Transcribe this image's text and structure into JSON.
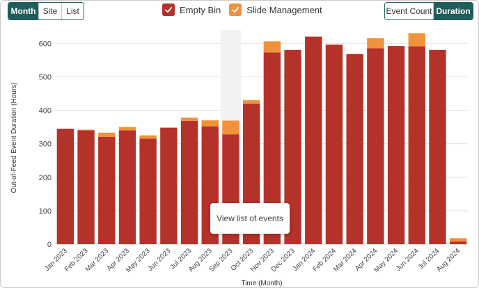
{
  "view_toggle": {
    "items": [
      "Month",
      "Site",
      "List"
    ],
    "active": 0
  },
  "metric_toggle": {
    "items": [
      "Event Count",
      "Duration"
    ],
    "active": 1
  },
  "colors": {
    "empty_bin": "#b5322a",
    "slide_management": "#f0923a",
    "accent": "#1f5f5b",
    "hover_band": "#f2f2f2"
  },
  "tooltip": {
    "text": "View list of events"
  },
  "chart_data": {
    "type": "bar",
    "stacked": true,
    "categories": [
      "Jan 2023",
      "Feb 2023",
      "Mar 2023",
      "Apr 2023",
      "May 2023",
      "Jun 2023",
      "Jul 2023",
      "Aug 2023",
      "Sep 2023",
      "Oct 2023",
      "Nov 2023",
      "Dec 2023",
      "Jan 2024",
      "Feb 2024",
      "Mar 2024",
      "Apr 2024",
      "May 2024",
      "Jun 2024",
      "Jul 2024",
      "Aug 2024"
    ],
    "series": [
      {
        "name": "Empty Bin",
        "color": "#b5322a",
        "values": [
          345,
          340,
          320,
          340,
          315,
          348,
          368,
          352,
          328,
          420,
          573,
          580,
          620,
          596,
          568,
          585,
          592,
          591,
          580,
          8
        ]
      },
      {
        "name": "Slide Management",
        "color": "#f0923a",
        "values": [
          0,
          2,
          13,
          10,
          10,
          0,
          10,
          18,
          41,
          10,
          33,
          0,
          0,
          0,
          0,
          30,
          0,
          39,
          0,
          10
        ]
      }
    ],
    "xlabel": "Time (Month)",
    "ylabel": "Out-of-Feed Event Duration (Hours)",
    "ylim": [
      0,
      640
    ],
    "yticks": [
      0,
      100,
      200,
      300,
      400,
      500,
      600
    ],
    "grid": true,
    "legend_position": "top",
    "highlighted_category": "Sep 2023"
  }
}
